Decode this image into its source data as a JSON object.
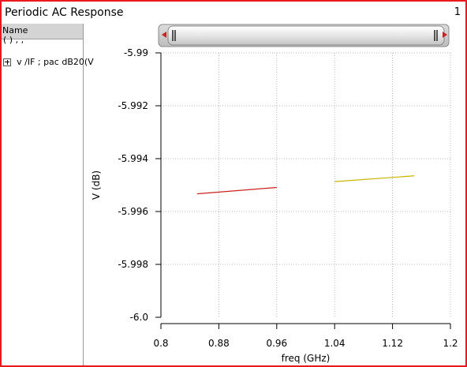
{
  "window": {
    "title": "Periodic AC Response",
    "number": "1"
  },
  "legend_panel": {
    "column_header": "Name",
    "group_label": "(           )   ,   ,",
    "trace_label": "v /IF ; pac dB20(V"
  },
  "chart_data": {
    "type": "line",
    "title": "",
    "xlabel": "freq (GHz)",
    "ylabel": "V (dB)",
    "xlim": [
      0.8,
      1.2
    ],
    "ylim": [
      -6.0,
      -5.99
    ],
    "x_ticks": [
      "0.8",
      "0.88",
      "0.96",
      "1.04",
      "1.12",
      "1.2"
    ],
    "y_ticks": [
      "-5.99",
      "-5.992",
      "-5.994",
      "-5.996",
      "-5.998",
      "-6.0"
    ],
    "grid": true,
    "series": [
      {
        "color": "#cc1f1f",
        "x": [
          0.85,
          0.96
        ],
        "y": [
          -5.99533,
          -5.99509
        ]
      },
      {
        "color": "#c8b400",
        "x": [
          1.04,
          1.15
        ],
        "y": [
          -5.99487,
          -5.99465
        ]
      }
    ]
  }
}
